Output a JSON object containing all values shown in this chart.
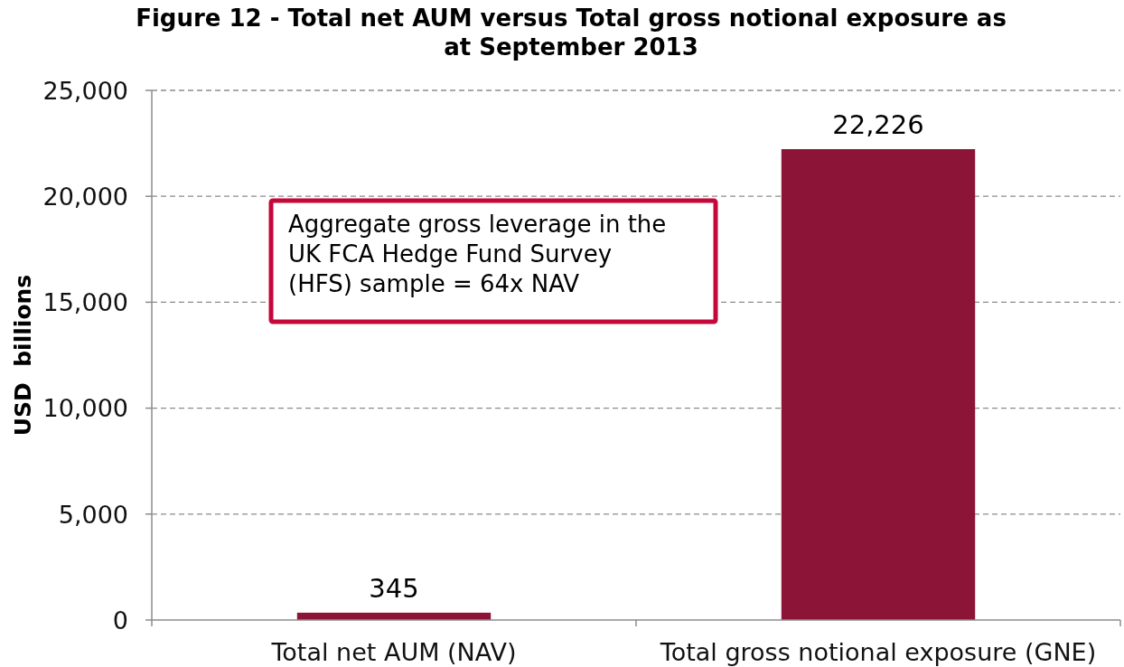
{
  "chart_data": {
    "type": "bar",
    "title": "Figure 12 - Total net AUM versus Total gross notional exposure as at September 2013",
    "ylabel": "USD  billions",
    "categories": [
      "Total net AUM (NAV)",
      "Total gross notional exposure (GNE)"
    ],
    "values": [
      345,
      22226
    ],
    "value_labels": [
      "345",
      "22,226"
    ],
    "color": "#8c1537",
    "ylim": [
      0,
      25000
    ],
    "yticks": [
      0,
      {
        "value": 5000,
        "label": "5,000"
      },
      {
        "value": 10000,
        "label": "10,000"
      },
      {
        "value": 15000,
        "label": "15,000"
      },
      {
        "value": 20000,
        "label": "20,000"
      },
      {
        "value": 25000,
        "label": "25,000"
      }
    ],
    "grid": "y",
    "annotations": [
      "Aggregate gross leverage in the UK FCA Hedge Fund Survey (HFS) sample = 64x NAV"
    ]
  }
}
